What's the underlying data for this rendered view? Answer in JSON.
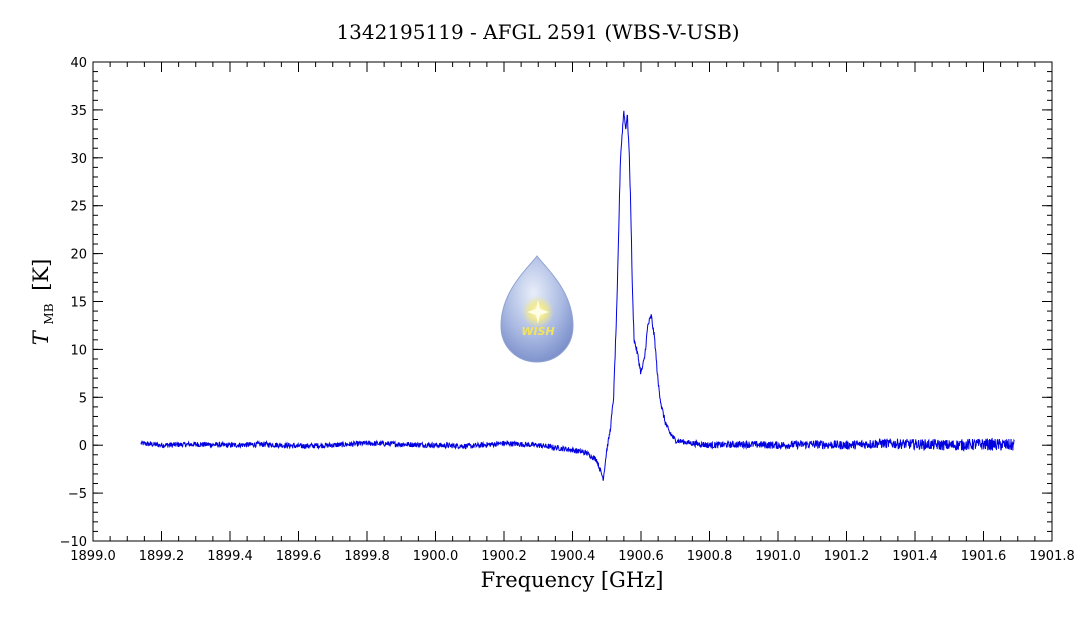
{
  "chart_data": {
    "type": "line",
    "title": "1342195119 - AFGL 2591 (WBS-V-USB)",
    "xlabel": "Frequency [GHz]",
    "ylabel_symbol": "T",
    "ylabel_subscript": "MB",
    "ylabel_unit": "[K]",
    "xlim": [
      1899.0,
      1901.8
    ],
    "ylim": [
      -10,
      40
    ],
    "x_ticks": [
      "1899.0",
      "1899.2",
      "1899.4",
      "1899.6",
      "1899.8",
      "1900.0",
      "1900.2",
      "1900.4",
      "1900.6",
      "1900.8",
      "1901.0",
      "1901.2",
      "1901.4",
      "1901.6",
      "1901.8"
    ],
    "y_ticks": [
      "−10",
      "−5",
      "0",
      "5",
      "10",
      "15",
      "20",
      "25",
      "30",
      "35",
      "40"
    ],
    "grid": false,
    "line_color": "#0000e0",
    "logo_text": "WISH",
    "series": [
      {
        "x": [
          1899.14,
          1899.2,
          1899.3,
          1899.4,
          1899.5,
          1899.6,
          1899.7,
          1899.8,
          1899.9,
          1900.0,
          1900.1,
          1900.2,
          1900.3,
          1900.4,
          1900.44,
          1900.47,
          1900.49,
          1900.495,
          1900.5,
          1900.51,
          1900.52,
          1900.53,
          1900.54,
          1900.55,
          1900.555,
          1900.56,
          1900.565,
          1900.57,
          1900.575,
          1900.58,
          1900.59,
          1900.6,
          1900.61,
          1900.62,
          1900.63,
          1900.64,
          1900.65,
          1900.66,
          1900.67,
          1900.68,
          1900.7,
          1900.75,
          1900.8,
          1900.9,
          1901.0,
          1901.1,
          1901.2,
          1901.3,
          1901.4,
          1901.5,
          1901.6,
          1901.69
        ],
        "y": [
          0.2,
          0.0,
          0.1,
          0.0,
          0.1,
          -0.1,
          0.0,
          0.2,
          0.1,
          0.0,
          -0.1,
          0.2,
          0.0,
          -0.5,
          -0.8,
          -1.5,
          -3.5,
          -2.0,
          -0.5,
          1.5,
          5.0,
          15.0,
          30.0,
          35.0,
          33.0,
          34.5,
          31.0,
          25.0,
          16.0,
          11.0,
          9.5,
          7.5,
          9.0,
          12.5,
          13.5,
          11.0,
          6.5,
          4.0,
          2.5,
          1.5,
          0.5,
          0.2,
          0.0,
          0.1,
          0.0,
          0.1,
          0.0,
          0.2,
          0.1,
          0.0,
          0.1,
          0.0
        ]
      }
    ]
  }
}
